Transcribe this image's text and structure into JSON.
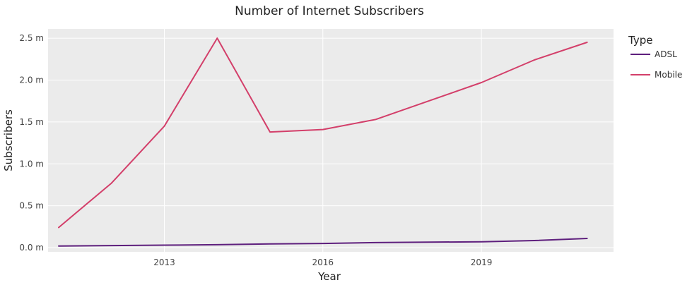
{
  "chart_data": {
    "type": "line",
    "title": "Number of Internet Subscribers",
    "xlabel": "Year",
    "ylabel": "Subscribers",
    "x": [
      2011,
      2012,
      2013,
      2014,
      2015,
      2016,
      2017,
      2018,
      2019,
      2020,
      2021
    ],
    "xlim": [
      2010.8,
      2021.5
    ],
    "ylim": [
      -0.05,
      2.61
    ],
    "x_ticks": [
      {
        "value": 2013,
        "label": "2013"
      },
      {
        "value": 2016,
        "label": "2016"
      },
      {
        "value": 2019,
        "label": "2019"
      }
    ],
    "y_ticks": [
      {
        "value": 0,
        "label": "0.0 m"
      },
      {
        "value": 0.5,
        "label": "0.5 m"
      },
      {
        "value": 1.0,
        "label": "1.0 m"
      },
      {
        "value": 1.5,
        "label": "1.5 m"
      },
      {
        "value": 2.0,
        "label": "2.0 m"
      },
      {
        "value": 2.5,
        "label": "2.5 m"
      }
    ],
    "legend": {
      "title": "Type",
      "position": "right"
    },
    "grid": true,
    "plot_background": "#ebebeb",
    "grid_color": "#ffffff",
    "series": [
      {
        "name": "ADSL",
        "color": "#5e1f7d",
        "values": [
          0.02,
          0.025,
          0.03,
          0.035,
          0.045,
          0.05,
          0.06,
          0.065,
          0.07,
          0.085,
          0.11
        ]
      },
      {
        "name": "Mobile",
        "color": "#d33f6a",
        "values": [
          0.24,
          0.77,
          1.45,
          2.5,
          1.38,
          1.41,
          1.53,
          1.75,
          1.97,
          2.24,
          2.45
        ]
      }
    ]
  }
}
